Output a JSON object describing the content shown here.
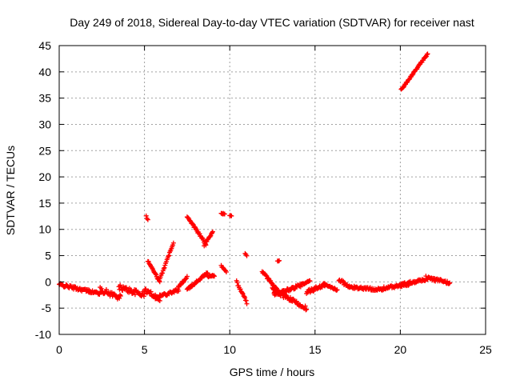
{
  "chart_data": {
    "type": "scatter",
    "title": "Day 249 of 2018, Sidereal Day-to-day VTEC variation (SDTVAR) for receiver nast",
    "xlabel": "GPS time / hours",
    "ylabel": "SDTVAR / TECUs",
    "xlim": [
      0,
      25
    ],
    "ylim": [
      -10,
      45
    ],
    "xticks": [
      0,
      5,
      10,
      15,
      20,
      25
    ],
    "yticks": [
      -10,
      -5,
      0,
      5,
      10,
      15,
      20,
      25,
      30,
      35,
      40,
      45
    ],
    "grid": true,
    "marker": "+",
    "color": "#ff0000",
    "segments": [
      {
        "x0": 0.0,
        "x1": 1.8,
        "y0": -0.5,
        "y1": -1.8,
        "jitter": 0.6
      },
      {
        "x0": 1.8,
        "x1": 2.4,
        "y0": -1.8,
        "y1": -2.2,
        "jitter": 0.5
      },
      {
        "x0": 2.4,
        "x1": 3.6,
        "y0": -1.5,
        "y1": -3.0,
        "jitter": 1.0
      },
      {
        "x0": 3.5,
        "x1": 5.0,
        "y0": -1.0,
        "y1": -2.5,
        "jitter": 1.0
      },
      {
        "x0": 5.0,
        "x1": 5.9,
        "y0": -1.5,
        "y1": -3.2,
        "jitter": 0.8
      },
      {
        "x0": 5.1,
        "x1": 5.2,
        "y0": 12.5,
        "y1": 11.8,
        "jitter": 0.2
      },
      {
        "x0": 5.2,
        "x1": 5.9,
        "y0": 4.0,
        "y1": 0.0,
        "jitter": 0.3
      },
      {
        "x0": 5.9,
        "x1": 6.7,
        "y0": 0.5,
        "y1": 7.5,
        "jitter": 0.3
      },
      {
        "x0": 5.6,
        "x1": 7.0,
        "y0": -3.0,
        "y1": -1.5,
        "jitter": 0.6
      },
      {
        "x0": 7.0,
        "x1": 7.5,
        "y0": -1.0,
        "y1": 1.0,
        "jitter": 0.4
      },
      {
        "x0": 7.5,
        "x1": 8.6,
        "y0": 12.5,
        "y1": 7.2,
        "jitter": 0.4
      },
      {
        "x0": 8.5,
        "x1": 9.0,
        "y0": 7.0,
        "y1": 9.5,
        "jitter": 0.4
      },
      {
        "x0": 7.5,
        "x1": 8.7,
        "y0": -1.5,
        "y1": 1.8,
        "jitter": 0.4
      },
      {
        "x0": 8.7,
        "x1": 9.1,
        "y0": 1.0,
        "y1": 1.2,
        "jitter": 0.3
      },
      {
        "x0": 9.5,
        "x1": 9.7,
        "y0": 13.0,
        "y1": 13.0,
        "jitter": 0.2
      },
      {
        "x0": 10.0,
        "x1": 10.1,
        "y0": 12.6,
        "y1": 12.6,
        "jitter": 0.1
      },
      {
        "x0": 9.5,
        "x1": 9.8,
        "y0": 3.0,
        "y1": 2.0,
        "jitter": 0.3
      },
      {
        "x0": 10.4,
        "x1": 11.0,
        "y0": 0.0,
        "y1": -4.0,
        "jitter": 0.5
      },
      {
        "x0": 10.9,
        "x1": 11.0,
        "y0": 5.5,
        "y1": 5.0,
        "jitter": 0.2
      },
      {
        "x0": 11.9,
        "x1": 12.9,
        "y0": 2.0,
        "y1": -2.0,
        "jitter": 0.4
      },
      {
        "x0": 12.8,
        "x1": 12.9,
        "y0": 4.0,
        "y1": 4.0,
        "jitter": 0.1
      },
      {
        "x0": 12.5,
        "x1": 14.5,
        "y0": -1.5,
        "y1": -5.0,
        "jitter": 0.8
      },
      {
        "x0": 12.6,
        "x1": 14.7,
        "y0": -2.5,
        "y1": 0.0,
        "jitter": 0.6
      },
      {
        "x0": 14.5,
        "x1": 15.6,
        "y0": -2.0,
        "y1": -0.5,
        "jitter": 0.7
      },
      {
        "x0": 15.5,
        "x1": 16.3,
        "y0": -0.5,
        "y1": -1.5,
        "jitter": 0.5
      },
      {
        "x0": 16.4,
        "x1": 17.0,
        "y0": 0.5,
        "y1": -1.0,
        "jitter": 0.6
      },
      {
        "x0": 17.0,
        "x1": 19.0,
        "y0": -1.0,
        "y1": -1.5,
        "jitter": 0.5
      },
      {
        "x0": 19.0,
        "x1": 20.5,
        "y0": -1.2,
        "y1": -0.5,
        "jitter": 0.5
      },
      {
        "x0": 20.0,
        "x1": 21.5,
        "y0": -0.5,
        "y1": 0.5,
        "jitter": 0.5
      },
      {
        "x0": 21.5,
        "x1": 22.9,
        "y0": 0.8,
        "y1": -0.2,
        "jitter": 0.6
      },
      {
        "x0": 20.05,
        "x1": 21.6,
        "y0": 36.6,
        "y1": 43.4,
        "jitter": 0.25
      }
    ]
  }
}
